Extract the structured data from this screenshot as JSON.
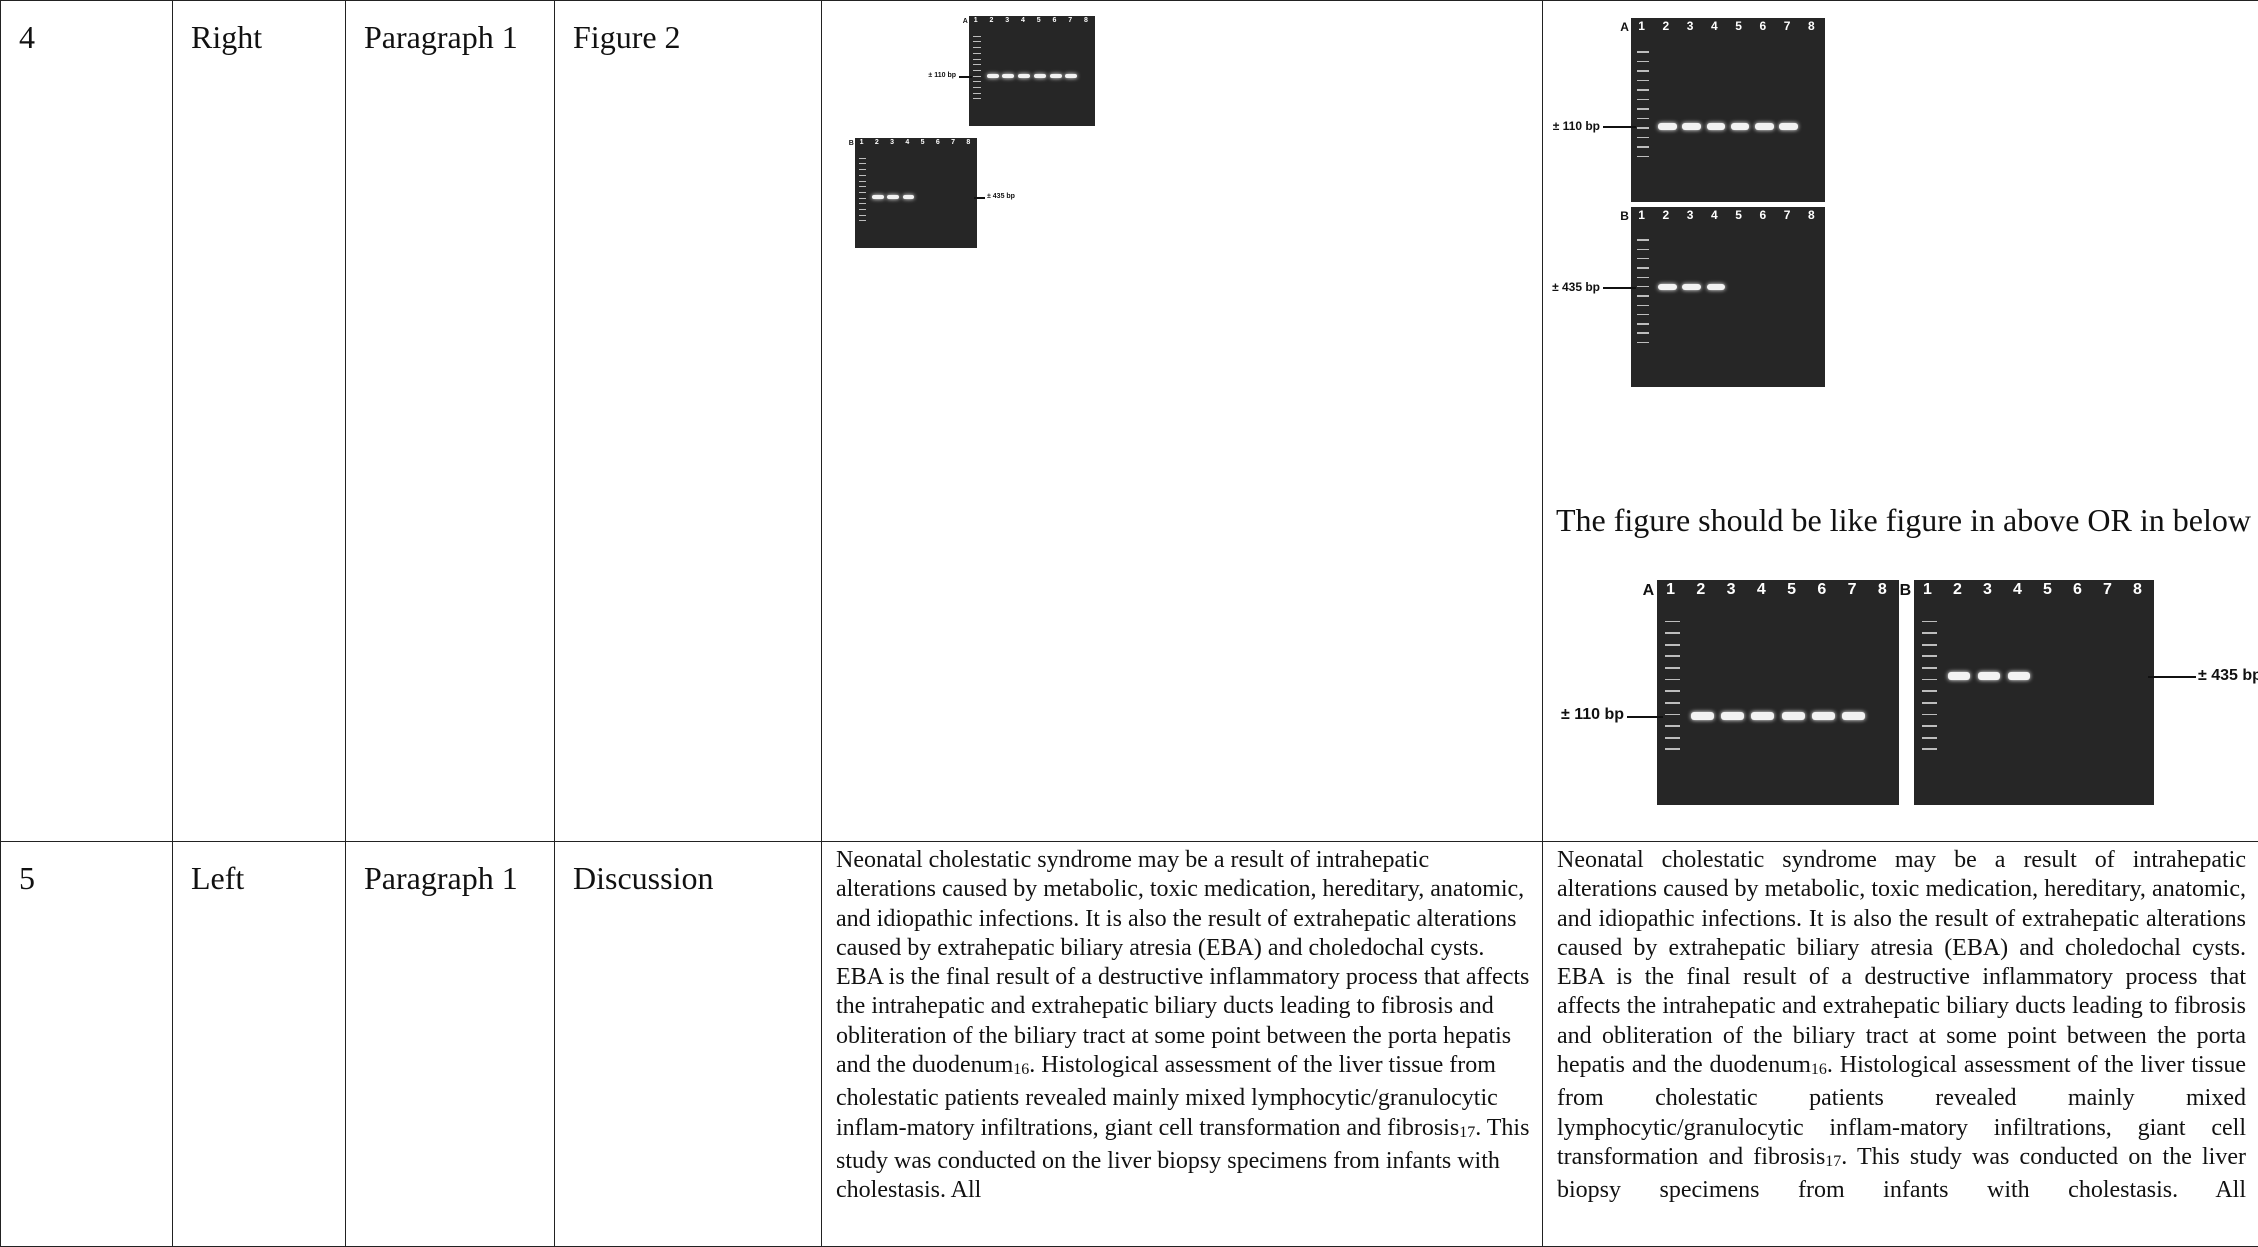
{
  "rows": [
    {
      "no": "4",
      "position": "Right",
      "paragraph": "Paragraph 1",
      "section": "Figure 2",
      "corrected_note": "The figure should be like figure in above  OR in below"
    },
    {
      "no": "5",
      "position": "Left",
      "paragraph": "Paragraph 1",
      "section": "Discussion",
      "original_text": "Neonatal cholestatic syndrome may be a result of intrahepatic alterations caused by metabolic, toxic medication, hereditary, anatomic, and idiopathic infections. It is also the result of extrahepatic alterations caused by extrahepatic biliary atresia (EBA) and choledochal cysts. EBA is the final result of a destructive inflammatory process that affects the intrahepatic and extrahepatic biliary ducts leading to fibrosis and obliteration of the biliary tract at some point between the porta hepatis and the duodenum",
      "original_ref1": "16",
      "original_text2": ". Histological assessment of the liver tissue from cholestatic patients revealed mainly mixed lymphocytic/granulocytic inflam-matory infiltrations, giant cell transformation and fibrosis",
      "original_ref2": "17",
      "original_text3": ". This study was conducted on the liver biopsy specimens from infants with cholestasis. All",
      "corrected_text": "Neonatal cholestatic syndrome may be a result of intrahepatic alterations caused by metabolic, toxic medication, hereditary, anatomic, and idiopathic infections. It is also the result of extrahepatic alterations caused by extrahepatic biliary atresia (EBA) and choledochal cysts. EBA is the final result of a destructive inflammatory process that affects the intrahepatic and extrahepatic biliary ducts leading to fibrosis and obliteration of the biliary tract at some point between the porta hepatis and the duodenum",
      "corrected_ref1": "16",
      "corrected_text2": ". Histological assessment of the liver tissue from cholestatic patients revealed mainly mixed lymphocytic/granulocytic inflam-matory infiltrations, giant cell transformation and fibrosis",
      "corrected_ref2": "17",
      "corrected_text3": ". This study was conducted on the liver biopsy specimens from infants with cholestasis. All"
    }
  ],
  "figure": {
    "panel_a": "A",
    "panel_b": "B",
    "lanes": [
      "1",
      "2",
      "3",
      "4",
      "5",
      "6",
      "7",
      "8"
    ],
    "band_a_label": "± 110 bp",
    "band_b_label": "± 435 bp",
    "gel_color": "#262626"
  }
}
